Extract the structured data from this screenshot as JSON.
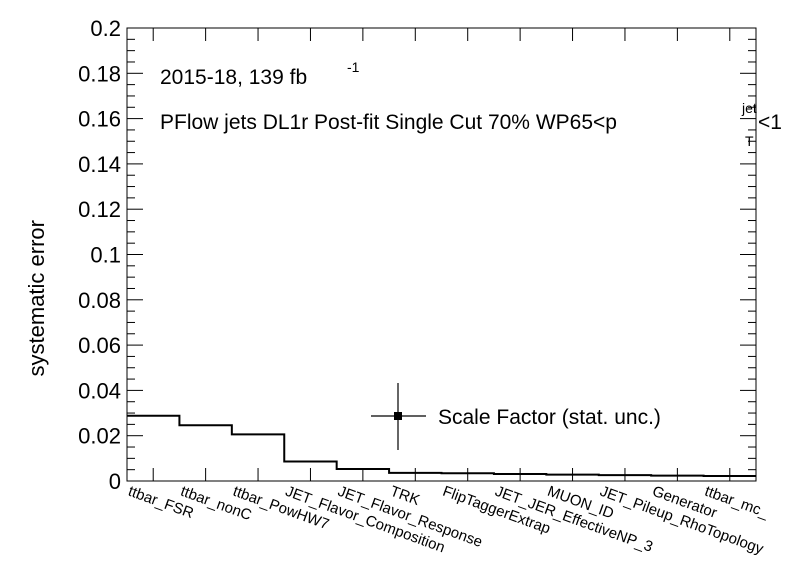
{
  "chart_data": {
    "type": "bar",
    "style": "step-histogram",
    "ylabel": "systematic error",
    "ylim": [
      0,
      0.2
    ],
    "yticks": [
      "0",
      "0.02",
      "0.04",
      "0.06",
      "0.08",
      "0.1",
      "0.12",
      "0.14",
      "0.16",
      "0.18",
      "0.2"
    ],
    "categories": [
      "ttbar_FSR",
      "ttbar_nonC",
      "ttbar_PowHW7",
      "JET_Flavor_Composition",
      "JET_Flavor_Response",
      "TRK",
      "FlipTaggerExtrap",
      "JET_JER_EffectiveNP_3",
      "MUON_ID",
      "JET_Pileup_RhoTopology",
      "Generator",
      "ttbar_mc_"
    ],
    "values": [
      0.0288,
      0.0246,
      0.0206,
      0.0086,
      0.0053,
      0.0036,
      0.0034,
      0.0031,
      0.0028,
      0.0026,
      0.0024,
      0.0022
    ],
    "legend": {
      "entries": [
        "Scale Factor (stat. unc.)"
      ],
      "position": "lower-right",
      "marker": "square with error bars"
    },
    "annotations": {
      "line1_main": "2015-18, 139 fb",
      "line1_sup": "-1",
      "line2_main": "PFlow jets DL1r Post-fit Single Cut 70% WP65<p",
      "line2_sub": "T",
      "line2_sup": "jet",
      "line2_tail": "<1"
    },
    "grid": false,
    "colors": {
      "line": "#000000",
      "background": "#ffffff"
    }
  }
}
